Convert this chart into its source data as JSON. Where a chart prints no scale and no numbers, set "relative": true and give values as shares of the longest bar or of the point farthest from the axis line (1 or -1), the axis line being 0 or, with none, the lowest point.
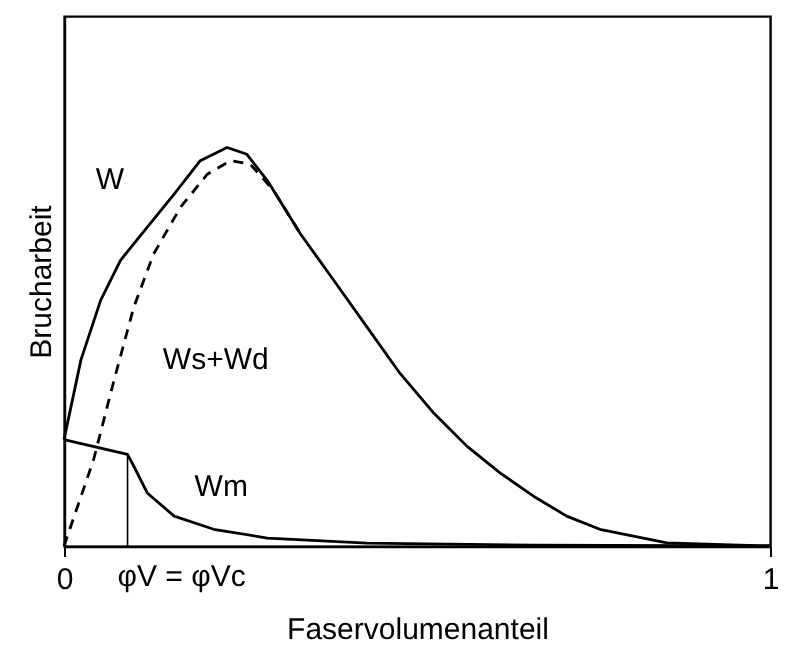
{
  "chart_data": {
    "type": "line",
    "relative": true,
    "xlabel": "Faservolumenanteil",
    "ylabel": "Brucharbeit",
    "xlim": [
      0,
      1
    ],
    "xticks": [
      0,
      1
    ],
    "grid": false,
    "marker": "none",
    "series": [
      {
        "name": "W",
        "color": "#000000",
        "line_style": "solid",
        "x": [
          0,
          0.024,
          0.052,
          0.08,
          0.118,
          0.156,
          0.193,
          0.231,
          0.259,
          0.288,
          0.335,
          0.382,
          0.429,
          0.476,
          0.524,
          0.571,
          0.618,
          0.665,
          0.712,
          0.759,
          0.854,
          1
        ],
        "values": [
          0.267,
          0.467,
          0.617,
          0.717,
          0.8,
          0.883,
          0.967,
          1.0,
          0.983,
          0.917,
          0.783,
          0.667,
          0.55,
          0.433,
          0.333,
          0.25,
          0.183,
          0.125,
          0.075,
          0.042,
          0.008,
          0
        ]
      },
      {
        "name": "Ws+Wd",
        "color": "#000000",
        "line_style": "dashed",
        "x": [
          0,
          0.042,
          0.071,
          0.099,
          0.127,
          0.165,
          0.203,
          0.236,
          0.264,
          0.297,
          0.335
        ],
        "values": [
          0,
          0.217,
          0.417,
          0.6,
          0.733,
          0.85,
          0.933,
          0.967,
          0.958,
          0.892,
          0.783
        ]
      },
      {
        "name": "Wm",
        "color": "#000000",
        "line_style": "solid",
        "x": [
          0,
          0.09,
          0.099,
          0.118,
          0.156,
          0.212,
          0.288,
          0.429,
          0.665,
          1
        ],
        "values": [
          0.267,
          0.23,
          0.2,
          0.133,
          0.075,
          0.042,
          0.02,
          0.007,
          0.002,
          0
        ]
      }
    ],
    "ref_lines": [
      {
        "axis": "x",
        "value": 0.09,
        "label": "φV = φVc",
        "color": "#000000"
      }
    ]
  }
}
